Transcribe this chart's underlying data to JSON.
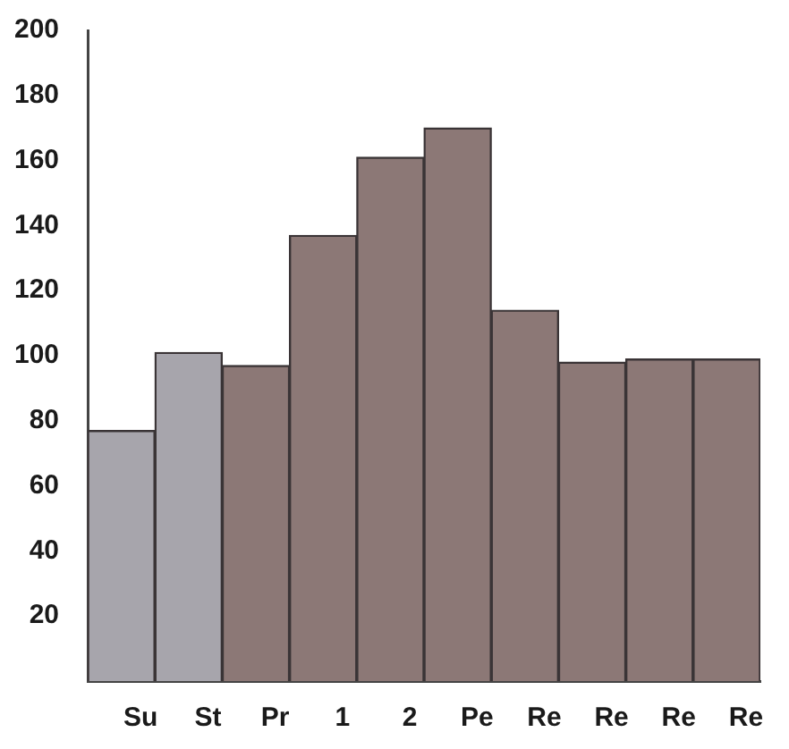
{
  "chart_data": {
    "type": "bar",
    "categories": [
      "Su",
      "St",
      "Pr",
      "1",
      "2",
      "Pe",
      "Re",
      "Re",
      "Re",
      "Re"
    ],
    "values": [
      77,
      101,
      97,
      137,
      161,
      170,
      114,
      98,
      99,
      99
    ],
    "colors": [
      "#a7a5ac",
      "#a7a5ac",
      "#8c7876",
      "#8c7876",
      "#8c7876",
      "#8c7876",
      "#8c7876",
      "#8c7876",
      "#8c7876",
      "#8c7876"
    ],
    "ylim": [
      0,
      200
    ],
    "yticks": [
      20,
      40,
      60,
      80,
      100,
      120,
      140,
      160,
      180,
      200
    ],
    "grid": false,
    "legend": false
  }
}
